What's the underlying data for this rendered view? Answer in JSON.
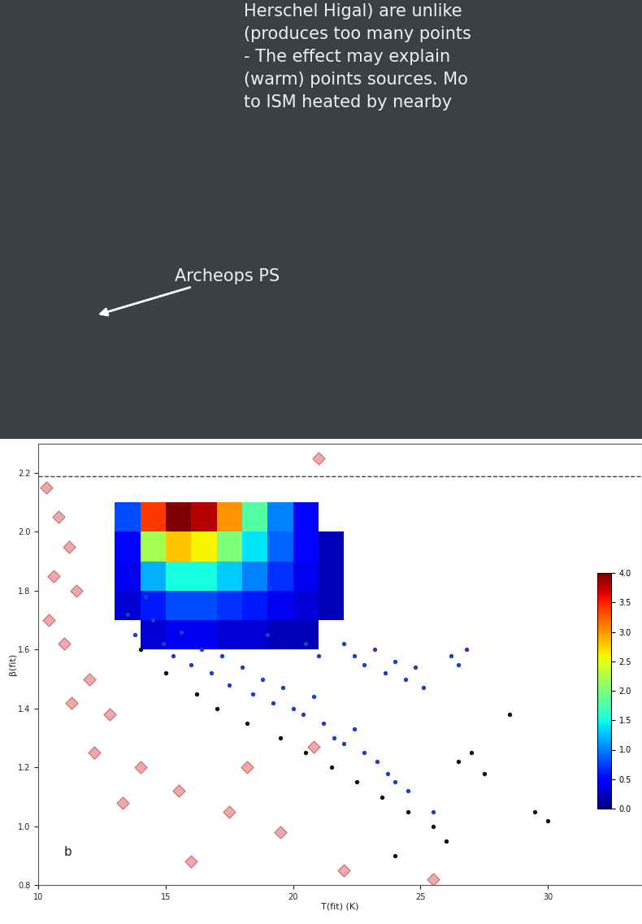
{
  "slide": {
    "text_lines": [
      "Herschel Higal) are unlike",
      "(produces too many points",
      "- The effect may explain",
      "(warm) points sources. Mo",
      "to ISM heated by nearby"
    ],
    "annotation": "Archeops PS"
  },
  "chart_data": {
    "type": "scatter",
    "x_label": "T(fit) (K)",
    "y_label": "β(fit)",
    "panel_label": "b",
    "xlim": [
      10,
      33.7
    ],
    "xticks": [
      10,
      15,
      20,
      25,
      30
    ],
    "ylim": [
      0.8,
      2.3
    ],
    "yticks": [
      {
        "value": 0.8,
        "label": "0.8"
      },
      {
        "value": 1,
        "label": "1.0"
      },
      {
        "value": 1.2,
        "label": "1.2"
      },
      {
        "value": 1.4,
        "label": "1.4"
      },
      {
        "value": 1.6,
        "label": "1.6"
      },
      {
        "value": 1.8,
        "label": "1.8"
      },
      {
        "value": 2,
        "label": "2.0"
      },
      {
        "value": 2.2,
        "label": "2.2"
      }
    ],
    "reference_line": {
      "y": 2.19,
      "line_style": "dashed",
      "color": "#444444"
    },
    "density": {
      "x_edges": [
        13,
        14,
        15,
        16,
        17,
        18,
        19,
        20,
        21,
        22,
        23
      ],
      "y_edges": [
        1.6,
        1.7,
        1.8,
        1.9,
        2.0,
        2.1
      ],
      "cells": [
        [
          null,
          0.3,
          0.4,
          0.4,
          0.3,
          0.3,
          0.2,
          0.2,
          null,
          null
        ],
        [
          0.3,
          0.6,
          0.8,
          0.8,
          0.7,
          0.6,
          0.4,
          0.3,
          0.2,
          null
        ],
        [
          0.4,
          1.2,
          1.5,
          1.5,
          1.3,
          1.0,
          0.7,
          0.4,
          0.2,
          null
        ],
        [
          0.5,
          2.2,
          2.8,
          2.6,
          2.0,
          1.4,
          0.9,
          0.5,
          0.2,
          null
        ],
        [
          0.8,
          3.4,
          4.0,
          3.8,
          3.0,
          1.8,
          1.0,
          0.5,
          null,
          null
        ]
      ],
      "colorbar_range": [
        0,
        4
      ],
      "colorbar_ticks": [
        {
          "value": 0,
          "label": "0.0"
        },
        {
          "value": 0.5,
          "label": "0.5"
        },
        {
          "value": 1,
          "label": "1.0"
        },
        {
          "value": 1.5,
          "label": "1.5"
        },
        {
          "value": 2,
          "label": "2.0"
        },
        {
          "value": 2.5,
          "label": "2.5"
        },
        {
          "value": 3,
          "label": "3.0"
        },
        {
          "value": 3.5,
          "label": "3.5"
        },
        {
          "value": 4,
          "label": "4.0"
        }
      ]
    },
    "series": [
      {
        "color": "#1f3fbf",
        "marker": "circle",
        "x": [
          13.5,
          13.8,
          14.2,
          14.5,
          14.9,
          15.3,
          15.6,
          16.0,
          16.4,
          16.8,
          17.2,
          17.5,
          18.0,
          18.4,
          18.8,
          19.2,
          19.6,
          20.0,
          20.4,
          20.8,
          21.2,
          21.6,
          22.0,
          22.4,
          22.8,
          23.3,
          23.7,
          24.0,
          24.5,
          22.0,
          22.4,
          22.8,
          23.2,
          23.6,
          24.0,
          24.4,
          24.8,
          25.1,
          26.2,
          26.5,
          26.8,
          20.5,
          21.0,
          19.0,
          25.5
        ],
        "y": [
          1.72,
          1.65,
          1.78,
          1.7,
          1.62,
          1.58,
          1.66,
          1.55,
          1.6,
          1.52,
          1.58,
          1.48,
          1.54,
          1.45,
          1.5,
          1.42,
          1.47,
          1.4,
          1.38,
          1.44,
          1.35,
          1.3,
          1.28,
          1.33,
          1.25,
          1.22,
          1.18,
          1.15,
          1.12,
          1.62,
          1.58,
          1.55,
          1.6,
          1.52,
          1.56,
          1.5,
          1.54,
          1.47,
          1.58,
          1.55,
          1.6,
          1.62,
          1.58,
          1.65,
          1.05
        ]
      },
      {
        "color": "#111111",
        "marker": "circle",
        "x": [
          14.0,
          15.0,
          16.2,
          17.0,
          18.2,
          19.5,
          20.5,
          21.5,
          22.5,
          23.5,
          24.5,
          25.5,
          26.5,
          27.0,
          27.5,
          29.5,
          30.0,
          26.0,
          24.0,
          28.5
        ],
        "y": [
          1.6,
          1.52,
          1.45,
          1.4,
          1.35,
          1.3,
          1.25,
          1.2,
          1.15,
          1.1,
          1.05,
          1.0,
          1.22,
          1.25,
          1.18,
          1.05,
          1.02,
          0.95,
          0.9,
          1.38
        ]
      },
      {
        "color": "#e07070",
        "marker": "diamond",
        "x": [
          10.3,
          10.8,
          11.2,
          10.6,
          11.5,
          10.4,
          11.0,
          12.0,
          11.3,
          12.8,
          12.2,
          14.0,
          13.3,
          15.5,
          17.5,
          19.5,
          20.8,
          18.2,
          16.0,
          22.0,
          21.0,
          25.5
        ],
        "y": [
          2.15,
          2.05,
          1.95,
          1.85,
          1.8,
          1.7,
          1.62,
          1.5,
          1.42,
          1.38,
          1.25,
          1.2,
          1.08,
          1.12,
          1.05,
          0.98,
          1.27,
          1.2,
          0.88,
          0.85,
          2.25,
          0.82
        ]
      }
    ]
  }
}
